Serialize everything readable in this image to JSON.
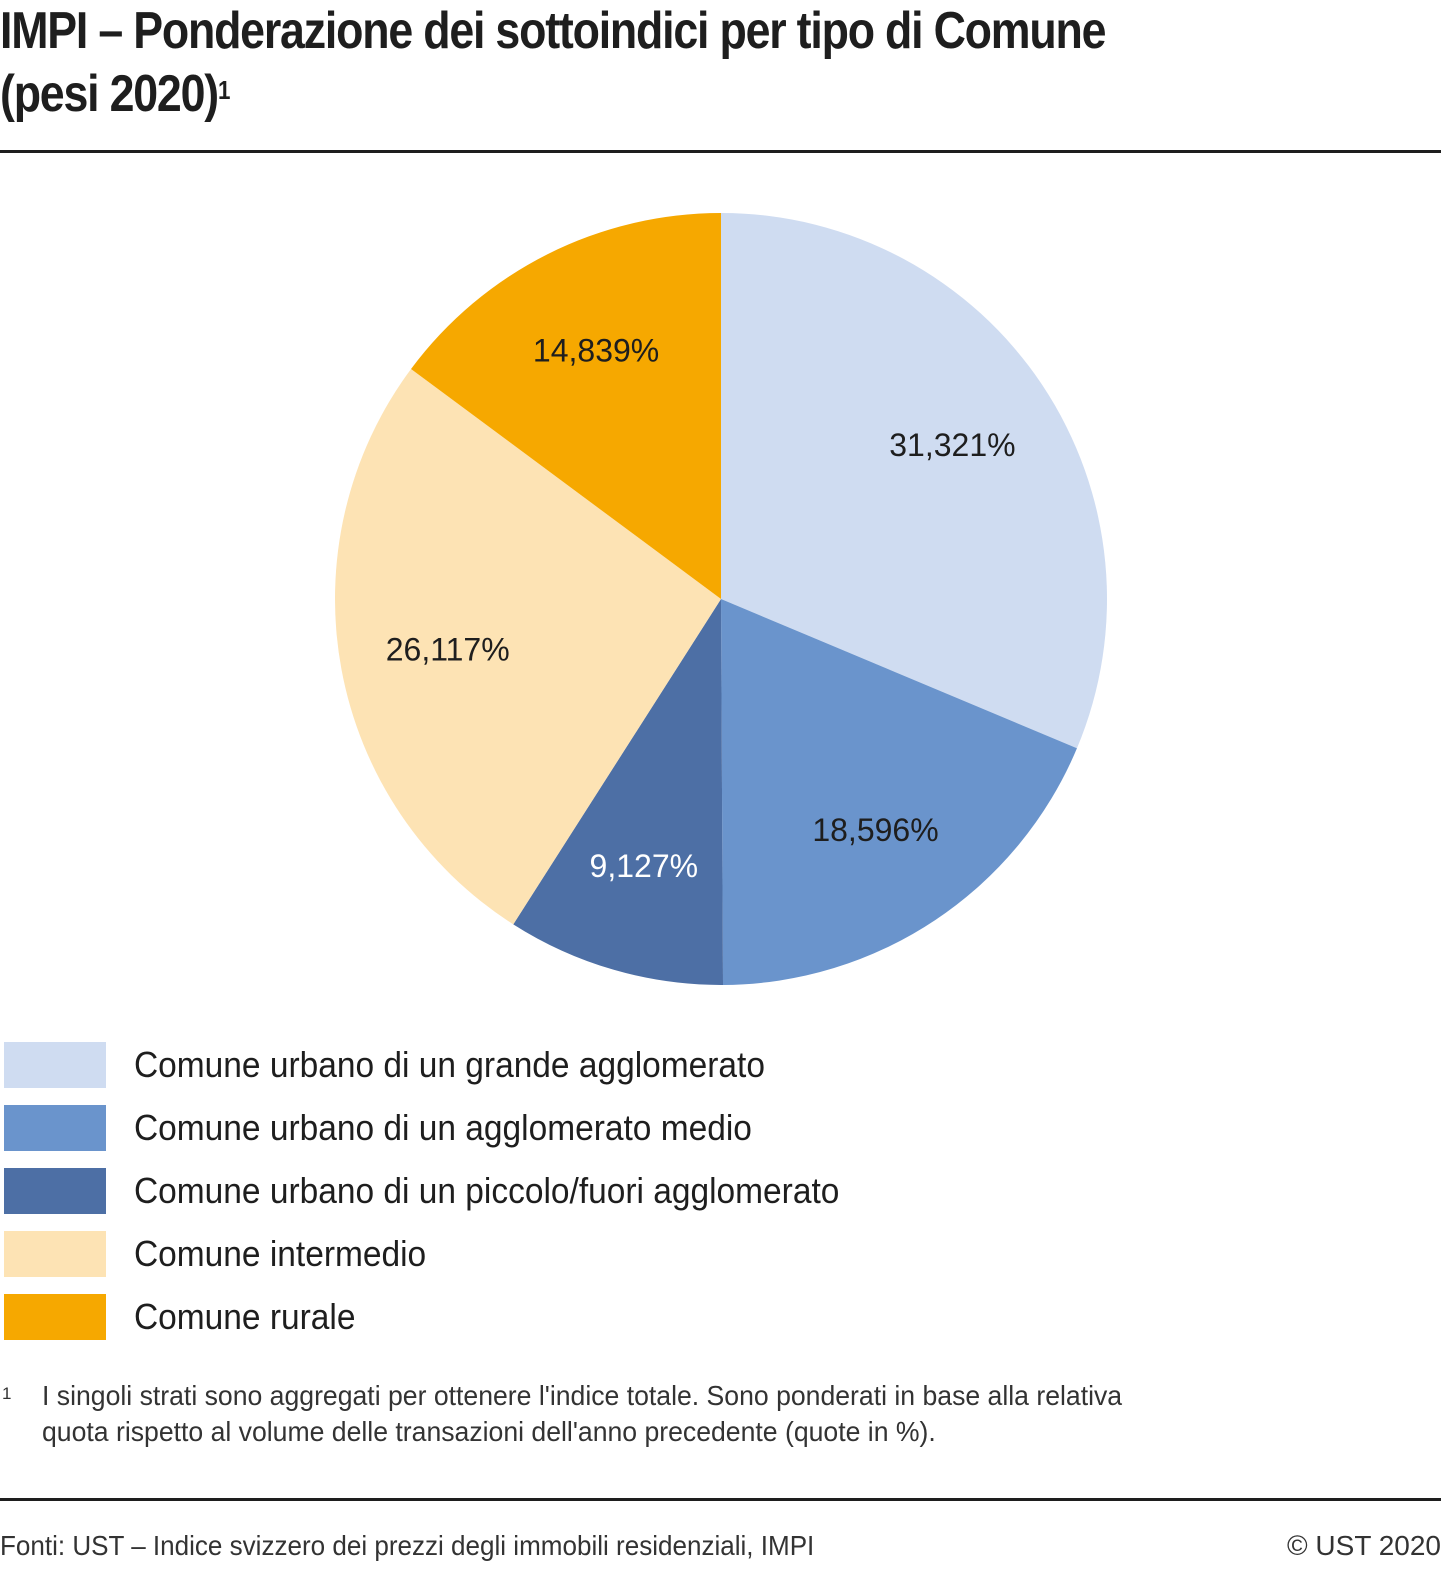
{
  "title": {
    "text": "IMPI – Ponderazione dei sottoindici per tipo di Comune",
    "line2": "(pesi 2020)",
    "footnote_ref": "1"
  },
  "chart_data": {
    "type": "pie",
    "title": "IMPI – Ponderazione dei sottoindici per tipo di Comune (pesi 2020)",
    "start_angle": "12 o'clock",
    "direction": "clockwise",
    "slices": [
      {
        "name": "Comune urbano di un grande agglomerato",
        "value": 31.321,
        "label": "31,321%",
        "color": "#cfdcf1",
        "label_color": "#1e1e1e"
      },
      {
        "name": "Comune urbano di un agglomerato medio",
        "value": 18.596,
        "label": "18,596%",
        "color": "#6a94cc",
        "label_color": "#1e1e1e"
      },
      {
        "name": "Comune urbano di un piccolo/fuori agglomerato",
        "value": 9.127,
        "label": "9,127%",
        "color": "#4d6fa5",
        "label_color": "#ffffff"
      },
      {
        "name": "Comune intermedio",
        "value": 26.117,
        "label": "26,117%",
        "color": "#fde3b4",
        "label_color": "#1e1e1e"
      },
      {
        "name": "Comune rurale",
        "value": 14.839,
        "label": "14,839%",
        "color": "#f6a800",
        "label_color": "#1e1e1e"
      }
    ],
    "legend_position": "bottom-left"
  },
  "legend": [
    {
      "label": "Comune urbano di un grande agglomerato",
      "color": "#cfdcf1"
    },
    {
      "label": "Comune urbano di un agglomerato medio",
      "color": "#6a94cc"
    },
    {
      "label": "Comune urbano di un piccolo/fuori agglomerato",
      "color": "#4d6fa5"
    },
    {
      "label": "Comune intermedio",
      "color": "#fde3b4"
    },
    {
      "label": "Comune rurale",
      "color": "#f6a800"
    }
  ],
  "footnote": {
    "number": "1",
    "line1": "I singoli strati sono aggregati per ottenere l'indice totale. Sono ponderati in base alla relativa",
    "line2": "quota rispetto al volume delle transazioni dell'anno precedente (quote in %)."
  },
  "footer": {
    "source": "Fonti: UST – Indice svizzero dei prezzi degli immobili residenziali, IMPI",
    "copyright": "© UST 2020"
  }
}
